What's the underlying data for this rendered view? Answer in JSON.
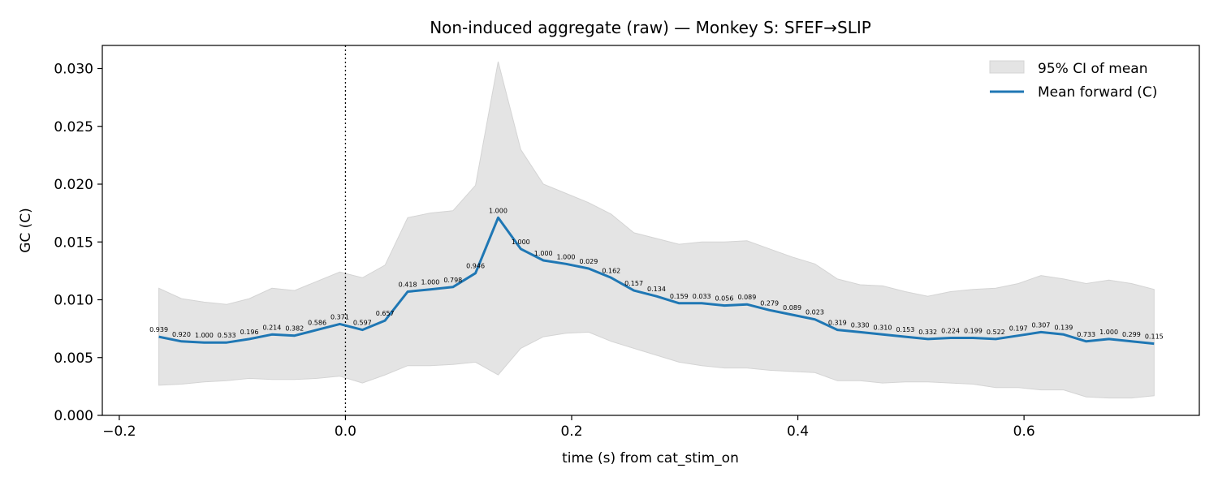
{
  "chart_data": {
    "type": "line",
    "title": "Non-induced aggregate (raw) — Monkey S: SFEF→SLIP",
    "xlabel": "time (s) from cat_stim_on",
    "ylabel": "GC (C)",
    "xlim": [
      -0.215,
      0.755
    ],
    "ylim": [
      0.0,
      0.032
    ],
    "x_ticks": [
      -0.2,
      0.0,
      0.2,
      0.4,
      0.6
    ],
    "x_tick_labels": [
      "−0.2",
      "0.0",
      "0.2",
      "0.4",
      "0.6"
    ],
    "y_ticks": [
      0.0,
      0.005,
      0.01,
      0.015,
      0.02,
      0.025,
      0.03
    ],
    "y_tick_labels": [
      "0.000",
      "0.005",
      "0.010",
      "0.015",
      "0.020",
      "0.025",
      "0.030"
    ],
    "vline_x": 0.0,
    "legend_position": "top-right",
    "colors": {
      "line": "#1f77b4",
      "band_fill": "#e4e4e4",
      "band_edge": "#d4d4d4"
    },
    "x": [
      -0.165,
      -0.145,
      -0.125,
      -0.105,
      -0.085,
      -0.065,
      -0.045,
      -0.025,
      -0.005,
      0.015,
      0.035,
      0.055,
      0.075,
      0.095,
      0.115,
      0.135,
      0.155,
      0.175,
      0.195,
      0.215,
      0.235,
      0.255,
      0.275,
      0.295,
      0.315,
      0.335,
      0.355,
      0.375,
      0.395,
      0.415,
      0.435,
      0.455,
      0.475,
      0.495,
      0.515,
      0.535,
      0.555,
      0.575,
      0.595,
      0.615,
      0.635,
      0.655,
      0.675,
      0.695,
      0.715
    ],
    "series": [
      {
        "name": "Mean forward (C)",
        "values": [
          0.0068,
          0.0064,
          0.0063,
          0.0063,
          0.0066,
          0.007,
          0.0069,
          0.0074,
          0.0079,
          0.0074,
          0.0082,
          0.0107,
          0.0109,
          0.0111,
          0.0123,
          0.0171,
          0.0144,
          0.0134,
          0.0131,
          0.0127,
          0.0119,
          0.0108,
          0.0103,
          0.0097,
          0.0097,
          0.0095,
          0.0096,
          0.0091,
          0.0087,
          0.0083,
          0.0074,
          0.0072,
          0.007,
          0.0068,
          0.0066,
          0.0067,
          0.0067,
          0.0066,
          0.0069,
          0.0072,
          0.007,
          0.0064,
          0.0066,
          0.0064,
          0.0062
        ],
        "point_labels": [
          "0.939",
          "0.920",
          "1.000",
          "0.533",
          "0.196",
          "0.214",
          "0.382",
          "0.586",
          "0.371",
          "0.597",
          "0.657",
          "0.418",
          "1.000",
          "0.798",
          "0.946",
          "1.000",
          "1.000",
          "1.000",
          "1.000",
          "0.029",
          "0.162",
          "0.157",
          "0.134",
          "0.159",
          "0.033",
          "0.056",
          "0.089",
          "0.279",
          "0.089",
          "0.023",
          "0.319",
          "0.330",
          "0.310",
          "0.153",
          "0.332",
          "0.224",
          "0.199",
          "0.522",
          "0.197",
          "0.307",
          "0.139",
          "0.733",
          "1.000",
          "0.299",
          "0.115"
        ]
      },
      {
        "name": "95% CI of mean",
        "upper": [
          0.011,
          0.0101,
          0.0098,
          0.0096,
          0.0101,
          0.011,
          0.0108,
          0.0116,
          0.0124,
          0.0119,
          0.013,
          0.0171,
          0.0175,
          0.0177,
          0.0199,
          0.0306,
          0.023,
          0.02,
          0.0192,
          0.0184,
          0.0174,
          0.0158,
          0.0153,
          0.0148,
          0.015,
          0.015,
          0.0151,
          0.0144,
          0.0137,
          0.0131,
          0.0118,
          0.0113,
          0.0112,
          0.0107,
          0.0103,
          0.0107,
          0.0109,
          0.011,
          0.0114,
          0.0121,
          0.0118,
          0.0114,
          0.0117,
          0.0114,
          0.0109
        ],
        "lower": [
          0.0026,
          0.0027,
          0.0029,
          0.003,
          0.0032,
          0.0031,
          0.0031,
          0.0032,
          0.0034,
          0.0028,
          0.0035,
          0.0043,
          0.0043,
          0.0044,
          0.0046,
          0.0035,
          0.0058,
          0.0068,
          0.0071,
          0.0072,
          0.0064,
          0.0058,
          0.0052,
          0.0046,
          0.0043,
          0.0041,
          0.0041,
          0.0039,
          0.0038,
          0.0037,
          0.003,
          0.003,
          0.0028,
          0.0029,
          0.0029,
          0.0028,
          0.0027,
          0.0024,
          0.0024,
          0.0022,
          0.0022,
          0.0016,
          0.0015,
          0.0015,
          0.0017
        ]
      }
    ]
  }
}
